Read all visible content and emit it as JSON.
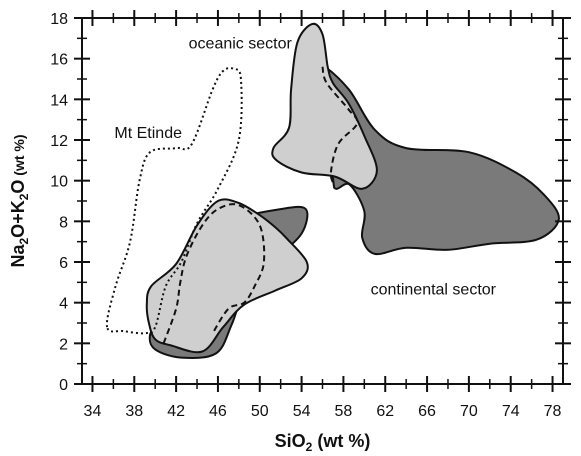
{
  "chart_data": {
    "type": "area",
    "xlabel": {
      "main": "SiO",
      "sub": "2",
      "tail": " (wt %)"
    },
    "ylabel": {
      "parts": [
        "Na",
        "2",
        "O+K",
        "2",
        "O"
      ],
      "tail": " (wt %)"
    },
    "xlim": [
      33,
      79
    ],
    "ylim": [
      0,
      18
    ],
    "xticks": [
      34,
      38,
      42,
      46,
      50,
      54,
      58,
      62,
      66,
      70,
      74,
      78
    ],
    "yticks": [
      0,
      2,
      4,
      6,
      8,
      10,
      12,
      14,
      16,
      18
    ],
    "grid": false,
    "colors": {
      "dark_fill": "#7a7a7a",
      "light_fill": "#cfcfcf",
      "outline": "#111111",
      "background": "#ffffff"
    },
    "regions": [
      {
        "id": "continental-lower-dark",
        "fill": "dark_fill",
        "dash": "solid",
        "points": [
          [
            40.5,
            3.4
          ],
          [
            42,
            5.8
          ],
          [
            45,
            6.9
          ],
          [
            48,
            8.1
          ],
          [
            52,
            8.6
          ],
          [
            54.4,
            8.6
          ],
          [
            54,
            7.4
          ],
          [
            51.5,
            6.2
          ],
          [
            49,
            5.2
          ],
          [
            47.3,
            2.9
          ],
          [
            45.8,
            1.5
          ],
          [
            42.5,
            1.3
          ],
          [
            40,
            1.7
          ],
          [
            39.5,
            2.4
          ]
        ]
      },
      {
        "id": "continental-upper-dark",
        "fill": "dark_fill",
        "dash": "solid",
        "points": [
          [
            56,
            15.6
          ],
          [
            58.5,
            14.5
          ],
          [
            61,
            12.5
          ],
          [
            64,
            11.6
          ],
          [
            70,
            11.4
          ],
          [
            74.5,
            10.4
          ],
          [
            77.2,
            9.3
          ],
          [
            78.6,
            8.1
          ],
          [
            76.5,
            7.1
          ],
          [
            72,
            6.9
          ],
          [
            68,
            6.6
          ],
          [
            64,
            6.7
          ],
          [
            61,
            6.4
          ],
          [
            59.8,
            7.2
          ],
          [
            60,
            8.5
          ],
          [
            58.6,
            9.8
          ],
          [
            57.3,
            9.6
          ],
          [
            57,
            10.1
          ],
          [
            56.5,
            12.5
          ],
          [
            55.8,
            14.5
          ]
        ]
      },
      {
        "id": "oceanic-lower-light",
        "fill": "light_fill",
        "dash": "solid",
        "points": [
          [
            39.6,
            4.8
          ],
          [
            42,
            5.9
          ],
          [
            44,
            7.8
          ],
          [
            46,
            9.0
          ],
          [
            48,
            8.9
          ],
          [
            50,
            8.3
          ],
          [
            51.5,
            7.7
          ],
          [
            52.5,
            7.2
          ],
          [
            54.5,
            6.0
          ],
          [
            54,
            5.2
          ],
          [
            51.5,
            4.6
          ],
          [
            48.5,
            3.9
          ],
          [
            46.5,
            2.8
          ],
          [
            44.5,
            1.6
          ],
          [
            41.5,
            1.9
          ],
          [
            40,
            2.2
          ],
          [
            39.4,
            3.0
          ],
          [
            39.2,
            3.9
          ]
        ]
      },
      {
        "id": "oceanic-upper-light",
        "fill": "light_fill",
        "dash": "solid",
        "points": [
          [
            53,
            14.5
          ],
          [
            53.6,
            16.8
          ],
          [
            55,
            17.7
          ],
          [
            56,
            17.2
          ],
          [
            56.5,
            15.6
          ],
          [
            57,
            14.8
          ],
          [
            58.5,
            13.8
          ],
          [
            60,
            12.2
          ],
          [
            61.2,
            10.5
          ],
          [
            59.8,
            9.6
          ],
          [
            57.2,
            10.2
          ],
          [
            54,
            10.4
          ],
          [
            51.6,
            11.0
          ],
          [
            51.3,
            11.6
          ],
          [
            52.8,
            12.6
          ]
        ]
      },
      {
        "id": "mt-etinde-outline",
        "fill": "none",
        "dash": "dotted",
        "points": [
          [
            35.4,
            2.8
          ],
          [
            36.2,
            4.8
          ],
          [
            37.6,
            7.0
          ],
          [
            38.5,
            10.0
          ],
          [
            39.5,
            11.4
          ],
          [
            42,
            11.6
          ],
          [
            43.5,
            11.8
          ],
          [
            45.5,
            14.5
          ],
          [
            46.5,
            15.4
          ],
          [
            47.5,
            15.5
          ],
          [
            48.2,
            15.0
          ],
          [
            48,
            12.0
          ],
          [
            46,
            9.6
          ],
          [
            44,
            7.9
          ],
          [
            42.5,
            6.0
          ],
          [
            41,
            4.8
          ],
          [
            40,
            2.8
          ],
          [
            39,
            2.5
          ],
          [
            37,
            2.6
          ]
        ]
      },
      {
        "id": "dashed-lower-divider",
        "fill": "none",
        "dash": "dashed",
        "open": true,
        "points": [
          [
            40.8,
            2.0
          ],
          [
            42,
            3.7
          ],
          [
            42.4,
            5.0
          ],
          [
            43,
            6.3
          ],
          [
            44.5,
            7.8
          ],
          [
            46,
            8.6
          ],
          [
            48,
            8.8
          ],
          [
            50,
            7.8
          ],
          [
            50.4,
            6.0
          ],
          [
            49.5,
            4.8
          ],
          [
            48.5,
            4.0
          ],
          [
            47,
            3.7
          ],
          [
            45.5,
            2.5
          ]
        ]
      },
      {
        "id": "dashed-upper-divider",
        "fill": "none",
        "dash": "dashed",
        "open": true,
        "points": [
          [
            56,
            15.6
          ],
          [
            56.4,
            14.8
          ],
          [
            58.5,
            13.5
          ],
          [
            59.3,
            12.8
          ],
          [
            57.5,
            11.8
          ],
          [
            56.8,
            10.4
          ],
          [
            57.1,
            9.8
          ]
        ]
      }
    ],
    "annotations": [
      {
        "text": "oceanic sector",
        "x": 43.2,
        "y": 16.5
      },
      {
        "text": "Mt Etinde",
        "x": 36.1,
        "y": 12.1
      },
      {
        "text": "continental sector",
        "x": 60.6,
        "y": 4.4
      }
    ]
  }
}
